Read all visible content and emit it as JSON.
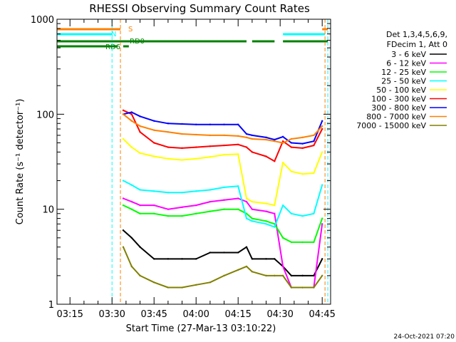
{
  "chart_data": {
    "type": "line",
    "title": "RHESSI Observing Summary Count Rates",
    "xlabel": "Start Time (27-Mar-13 03:10:22)",
    "ylabel": "Count Rate (s⁻¹ detector⁻¹)",
    "y_scale": "log",
    "ylim": [
      1,
      1000
    ],
    "xlim": [
      "03:10:22",
      "04:48:00"
    ],
    "x_ticks": [
      "03:15",
      "03:30",
      "03:45",
      "04:00",
      "04:15",
      "04:30",
      "04:45"
    ],
    "y_ticks": [
      "1",
      "10",
      "100",
      "1000"
    ],
    "legend_header": [
      "Det 1,3,4,5,6,9,",
      "FDecim 1, Att 0"
    ],
    "legend_position": "right",
    "timestamp": "24-Oct-2021 07:20",
    "flags": [
      {
        "label": "S",
        "color": "#ff8000",
        "segments": [
          [
            "03:10",
            "03:33"
          ],
          [
            "04:45",
            "04:47"
          ]
        ]
      },
      {
        "label": "N",
        "color": "#00ffff",
        "segments": [
          [
            "03:10",
            "03:30"
          ],
          [
            "04:31",
            "04:46"
          ]
        ]
      },
      {
        "label": "RD6",
        "color": "#008000",
        "segments": [
          [
            "03:10",
            "03:32"
          ],
          [
            "03:34",
            "03:36"
          ]
        ]
      },
      {
        "label": "RD0",
        "color": "#008000",
        "segments": [
          [
            "03:10",
            "04:18"
          ],
          [
            "04:20",
            "04:28"
          ],
          [
            "04:31",
            "04:47"
          ]
        ]
      }
    ],
    "vertical_lines": [
      {
        "time": "03:30",
        "color": "#00ffff"
      },
      {
        "time": "03:33",
        "color": "#ff8000"
      },
      {
        "time": "04:46",
        "color": "#ff8000"
      },
      {
        "time": "04:47",
        "color": "#00ffff"
      }
    ],
    "x": [
      "03:34",
      "03:37",
      "03:40",
      "03:45",
      "03:50",
      "03:55",
      "04:00",
      "04:05",
      "04:10",
      "04:15",
      "04:18",
      "04:20",
      "04:25",
      "04:28",
      "04:31",
      "04:34",
      "04:38",
      "04:42",
      "04:45"
    ],
    "series": [
      {
        "name": "3 - 6 keV",
        "color": "#000000",
        "values": [
          6,
          5,
          4,
          3,
          3,
          3,
          3,
          3.5,
          3.5,
          3.5,
          4,
          3,
          3,
          3,
          2.5,
          2,
          2,
          2,
          3
        ]
      },
      {
        "name": "6 - 12 keV",
        "color": "#ff00ff",
        "values": [
          13,
          12,
          11,
          11,
          10,
          10.5,
          11,
          12,
          12.5,
          13,
          12,
          10,
          9.5,
          9,
          2.5,
          1.5,
          1.5,
          1.5,
          7
        ]
      },
      {
        "name": "12 - 25 keV",
        "color": "#00ff00",
        "values": [
          11,
          10,
          9,
          9,
          8.5,
          8.5,
          9,
          9.5,
          10,
          10,
          9,
          8,
          7.5,
          7,
          5,
          4.5,
          4.5,
          4.5,
          8
        ]
      },
      {
        "name": "25 - 50 keV",
        "color": "#00ffff",
        "values": [
          20,
          18,
          16,
          15.5,
          15,
          15,
          15.5,
          16,
          17,
          17.5,
          8,
          7.5,
          7,
          6.5,
          11,
          9,
          8.5,
          9,
          18
        ]
      },
      {
        "name": "50 - 100 keV",
        "color": "#ffff00",
        "values": [
          55,
          45,
          39,
          36,
          34,
          33,
          34,
          35.5,
          37.5,
          38,
          13,
          12,
          11.5,
          11,
          31,
          25,
          23.5,
          24,
          40
        ]
      },
      {
        "name": "100 - 300 keV",
        "color": "#ff0000",
        "values": [
          110,
          100,
          65,
          50,
          45,
          44,
          45,
          46,
          47,
          48,
          45,
          40,
          36,
          32,
          52,
          45,
          44,
          47,
          70
        ]
      },
      {
        "name": "300 - 800 keV",
        "color": "#0000ff",
        "values": [
          100,
          105,
          95,
          85,
          80,
          79,
          78,
          78,
          78,
          78,
          62,
          60,
          57,
          54,
          58,
          50,
          49,
          52,
          85
        ]
      },
      {
        "name": "800 - 7000 keV",
        "color": "#ff8000",
        "values": [
          100,
          85,
          75,
          68,
          65,
          62,
          61,
          60,
          60,
          59,
          57,
          55,
          54,
          52,
          50,
          55,
          57,
          60,
          75
        ]
      },
      {
        "name": "7000 - 15000 keV",
        "color": "#808000",
        "values": [
          4,
          2.5,
          2,
          1.7,
          1.5,
          1.5,
          1.6,
          1.7,
          2,
          2.3,
          2.5,
          2.2,
          2,
          2,
          2,
          1.5,
          1.5,
          1.5,
          2
        ]
      }
    ]
  }
}
